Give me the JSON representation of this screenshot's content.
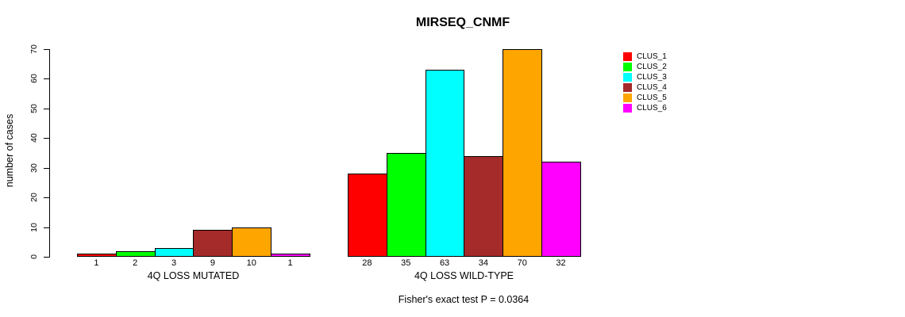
{
  "title": "MIRSEQ_CNMF",
  "footer": "Fisher's exact test P = 0.0364",
  "chart_data": {
    "type": "bar",
    "title": "MIRSEQ_CNMF",
    "xlabel": "",
    "ylabel": "number of cases",
    "ylim": [
      0,
      70
    ],
    "yticks": [
      0,
      10,
      20,
      30,
      40,
      50,
      60,
      70
    ],
    "grid": false,
    "legend_position": "right",
    "series": [
      {
        "name": "CLUS_1",
        "color": "#FF0000"
      },
      {
        "name": "CLUS_2",
        "color": "#00FF00"
      },
      {
        "name": "CLUS_3",
        "color": "#00FFFF"
      },
      {
        "name": "CLUS_4",
        "color": "#A52A2A"
      },
      {
        "name": "CLUS_5",
        "color": "#FFA500"
      },
      {
        "name": "CLUS_6",
        "color": "#FF00FF"
      }
    ],
    "groups": [
      {
        "label": "4Q LOSS MUTATED",
        "values": [
          1,
          2,
          3,
          9,
          10,
          1
        ]
      },
      {
        "label": "4Q LOSS WILD-TYPE",
        "values": [
          28,
          35,
          63,
          34,
          70,
          32
        ]
      }
    ],
    "bar_value_labels_shown": true,
    "annotation": "Fisher's exact test P = 0.0364"
  }
}
